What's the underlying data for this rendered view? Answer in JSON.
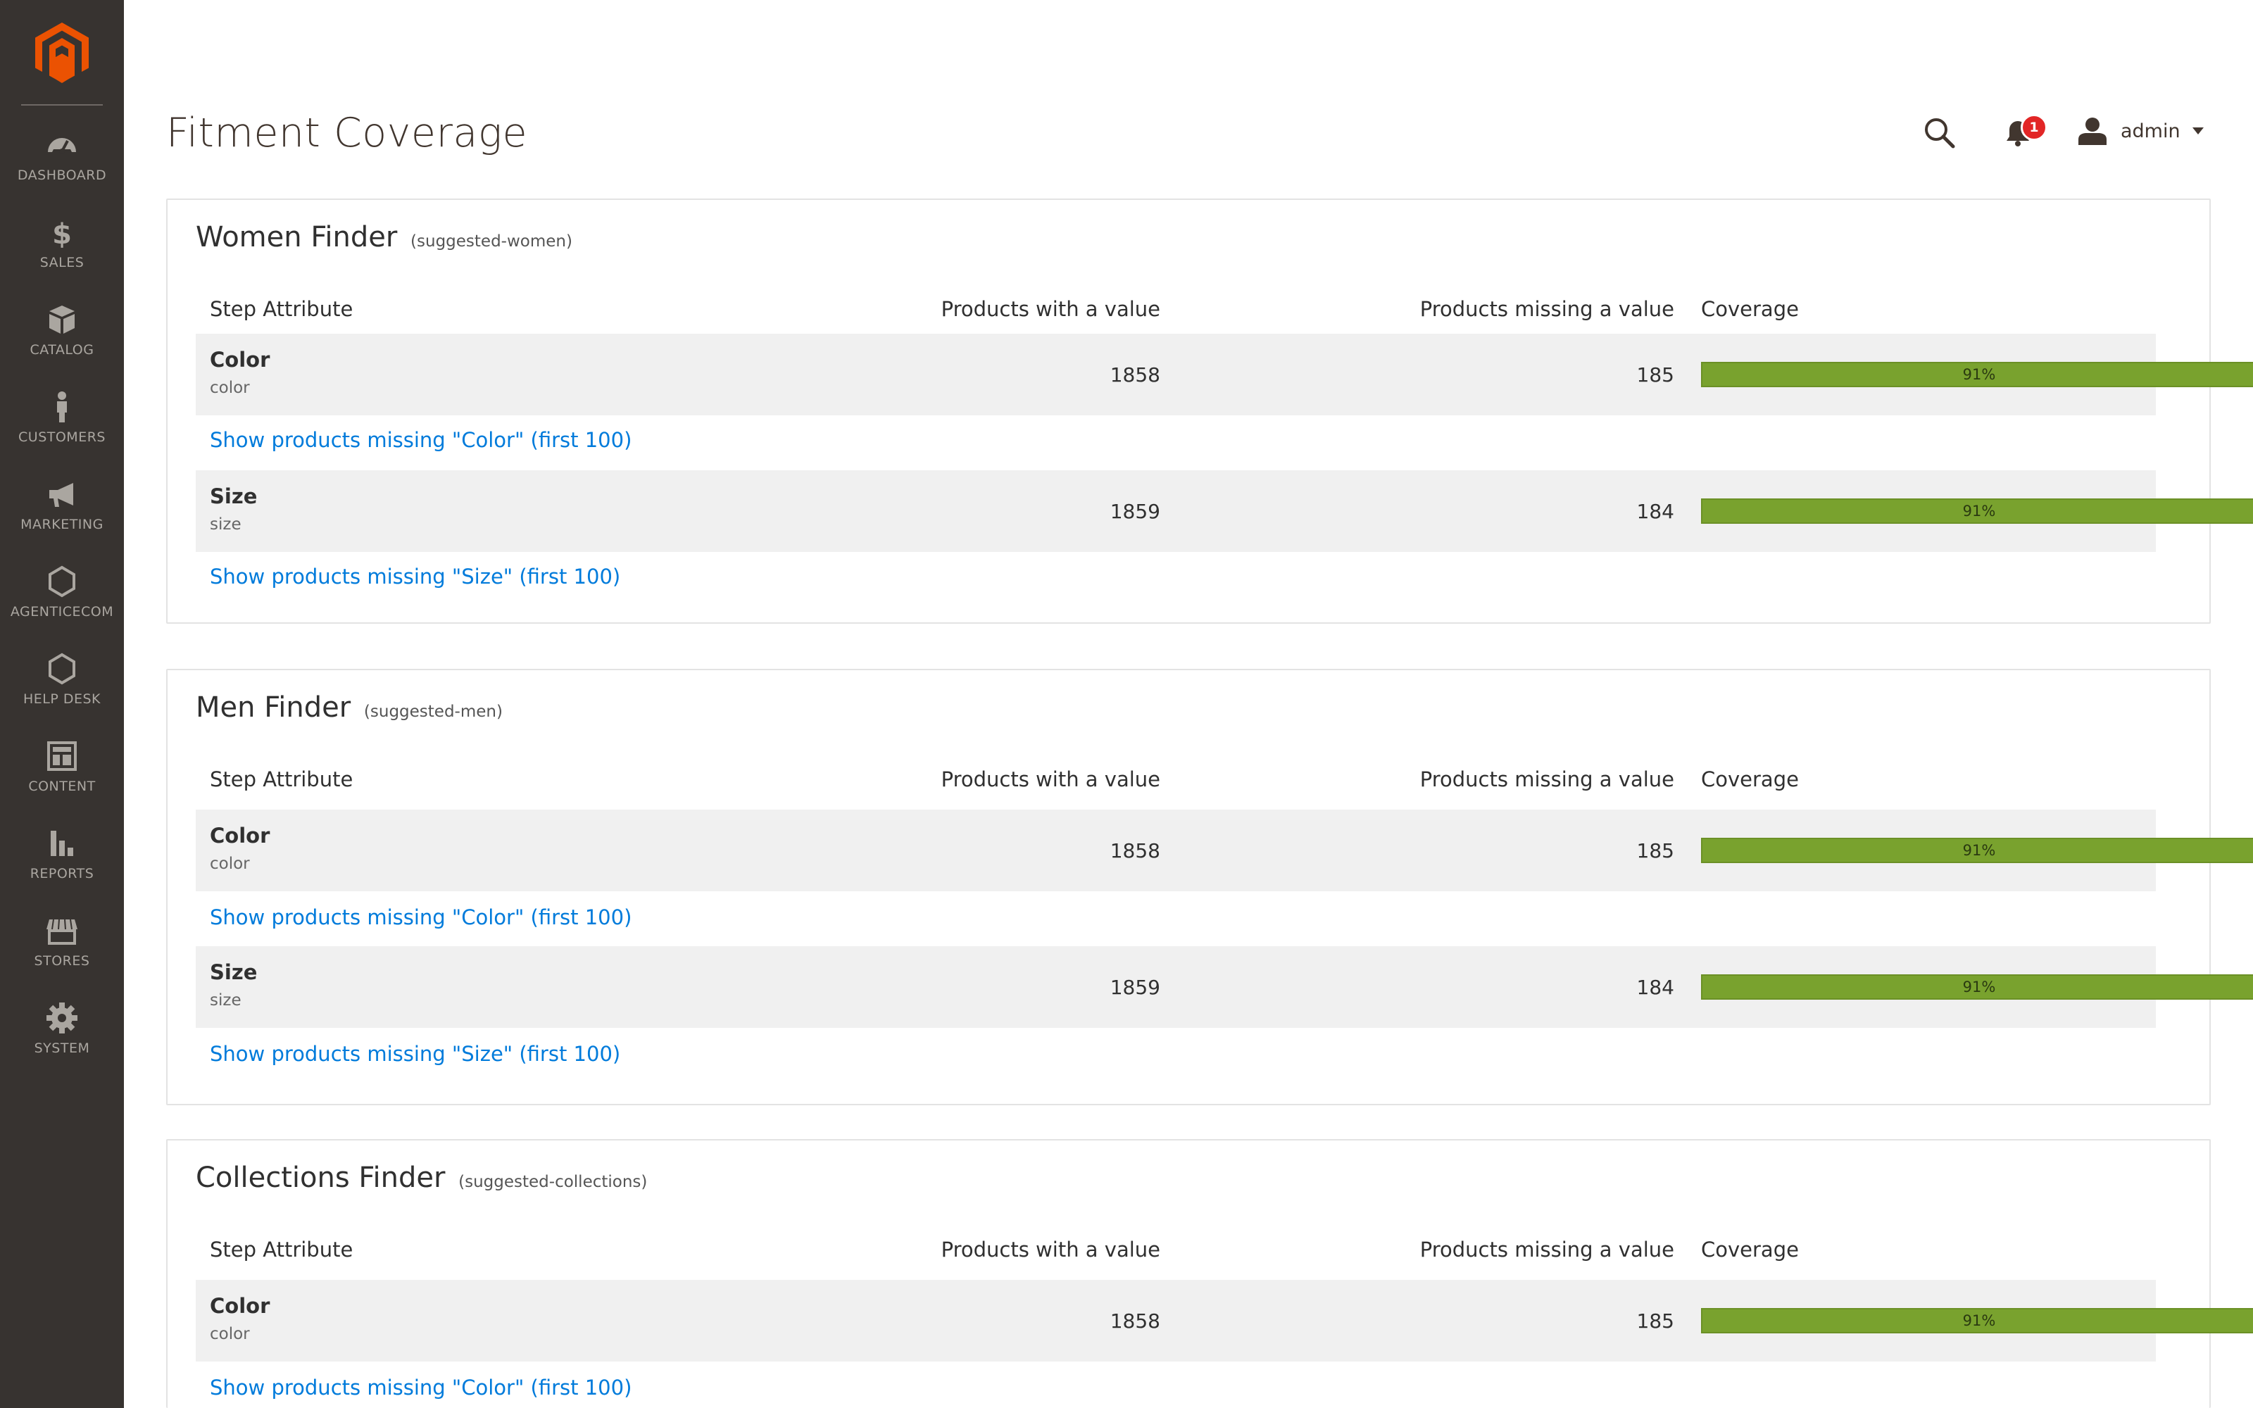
{
  "nav": [
    {
      "label": "DASHBOARD",
      "icon": "dashboard-icon"
    },
    {
      "label": "SALES",
      "icon": "dollar-icon"
    },
    {
      "label": "CATALOG",
      "icon": "box-icon"
    },
    {
      "label": "CUSTOMERS",
      "icon": "person-icon"
    },
    {
      "label": "MARKETING",
      "icon": "megaphone-icon"
    },
    {
      "label": "AGENTICECOM",
      "icon": "hexagon-icon"
    },
    {
      "label": "HELP DESK",
      "icon": "hexagon-icon"
    },
    {
      "label": "CONTENT",
      "icon": "layout-icon"
    },
    {
      "label": "REPORTS",
      "icon": "bar-chart-icon"
    },
    {
      "label": "STORES",
      "icon": "store-icon"
    },
    {
      "label": "SYSTEM",
      "icon": "gear-icon"
    }
  ],
  "header": {
    "title": "Fitment Coverage",
    "notification_count": "1",
    "user": "admin"
  },
  "columns": {
    "step": "Step Attribute",
    "with": "Products with a value",
    "missing": "Products missing a value",
    "coverage": "Coverage"
  },
  "colors": {
    "sidebar": "#373330",
    "accent": "#eb5202",
    "bar": "#79a22e",
    "link": "#007bdb",
    "badge": "#e22626"
  },
  "finders": [
    {
      "name": "Women Finder",
      "code": "(suggested-women)",
      "rows": [
        {
          "attr": "Color",
          "code": "color",
          "with": "1858",
          "missing": "185",
          "coverage_pct": 91,
          "coverage_label": "91%",
          "link": "Show products missing \"Color\" (first 100)"
        },
        {
          "attr": "Size",
          "code": "size",
          "with": "1859",
          "missing": "184",
          "coverage_pct": 91,
          "coverage_label": "91%",
          "link": "Show products missing \"Size\" (first 100)"
        }
      ]
    },
    {
      "name": "Men Finder",
      "code": "(suggested-men)",
      "rows": [
        {
          "attr": "Color",
          "code": "color",
          "with": "1858",
          "missing": "185",
          "coverage_pct": 91,
          "coverage_label": "91%",
          "link": "Show products missing \"Color\" (first 100)"
        },
        {
          "attr": "Size",
          "code": "size",
          "with": "1859",
          "missing": "184",
          "coverage_pct": 91,
          "coverage_label": "91%",
          "link": "Show products missing \"Size\" (first 100)"
        }
      ]
    },
    {
      "name": "Collections Finder",
      "code": "(suggested-collections)",
      "rows": [
        {
          "attr": "Color",
          "code": "color",
          "with": "1858",
          "missing": "185",
          "coverage_pct": 91,
          "coverage_label": "91%",
          "link": "Show products missing \"Color\" (first 100)"
        }
      ]
    }
  ]
}
